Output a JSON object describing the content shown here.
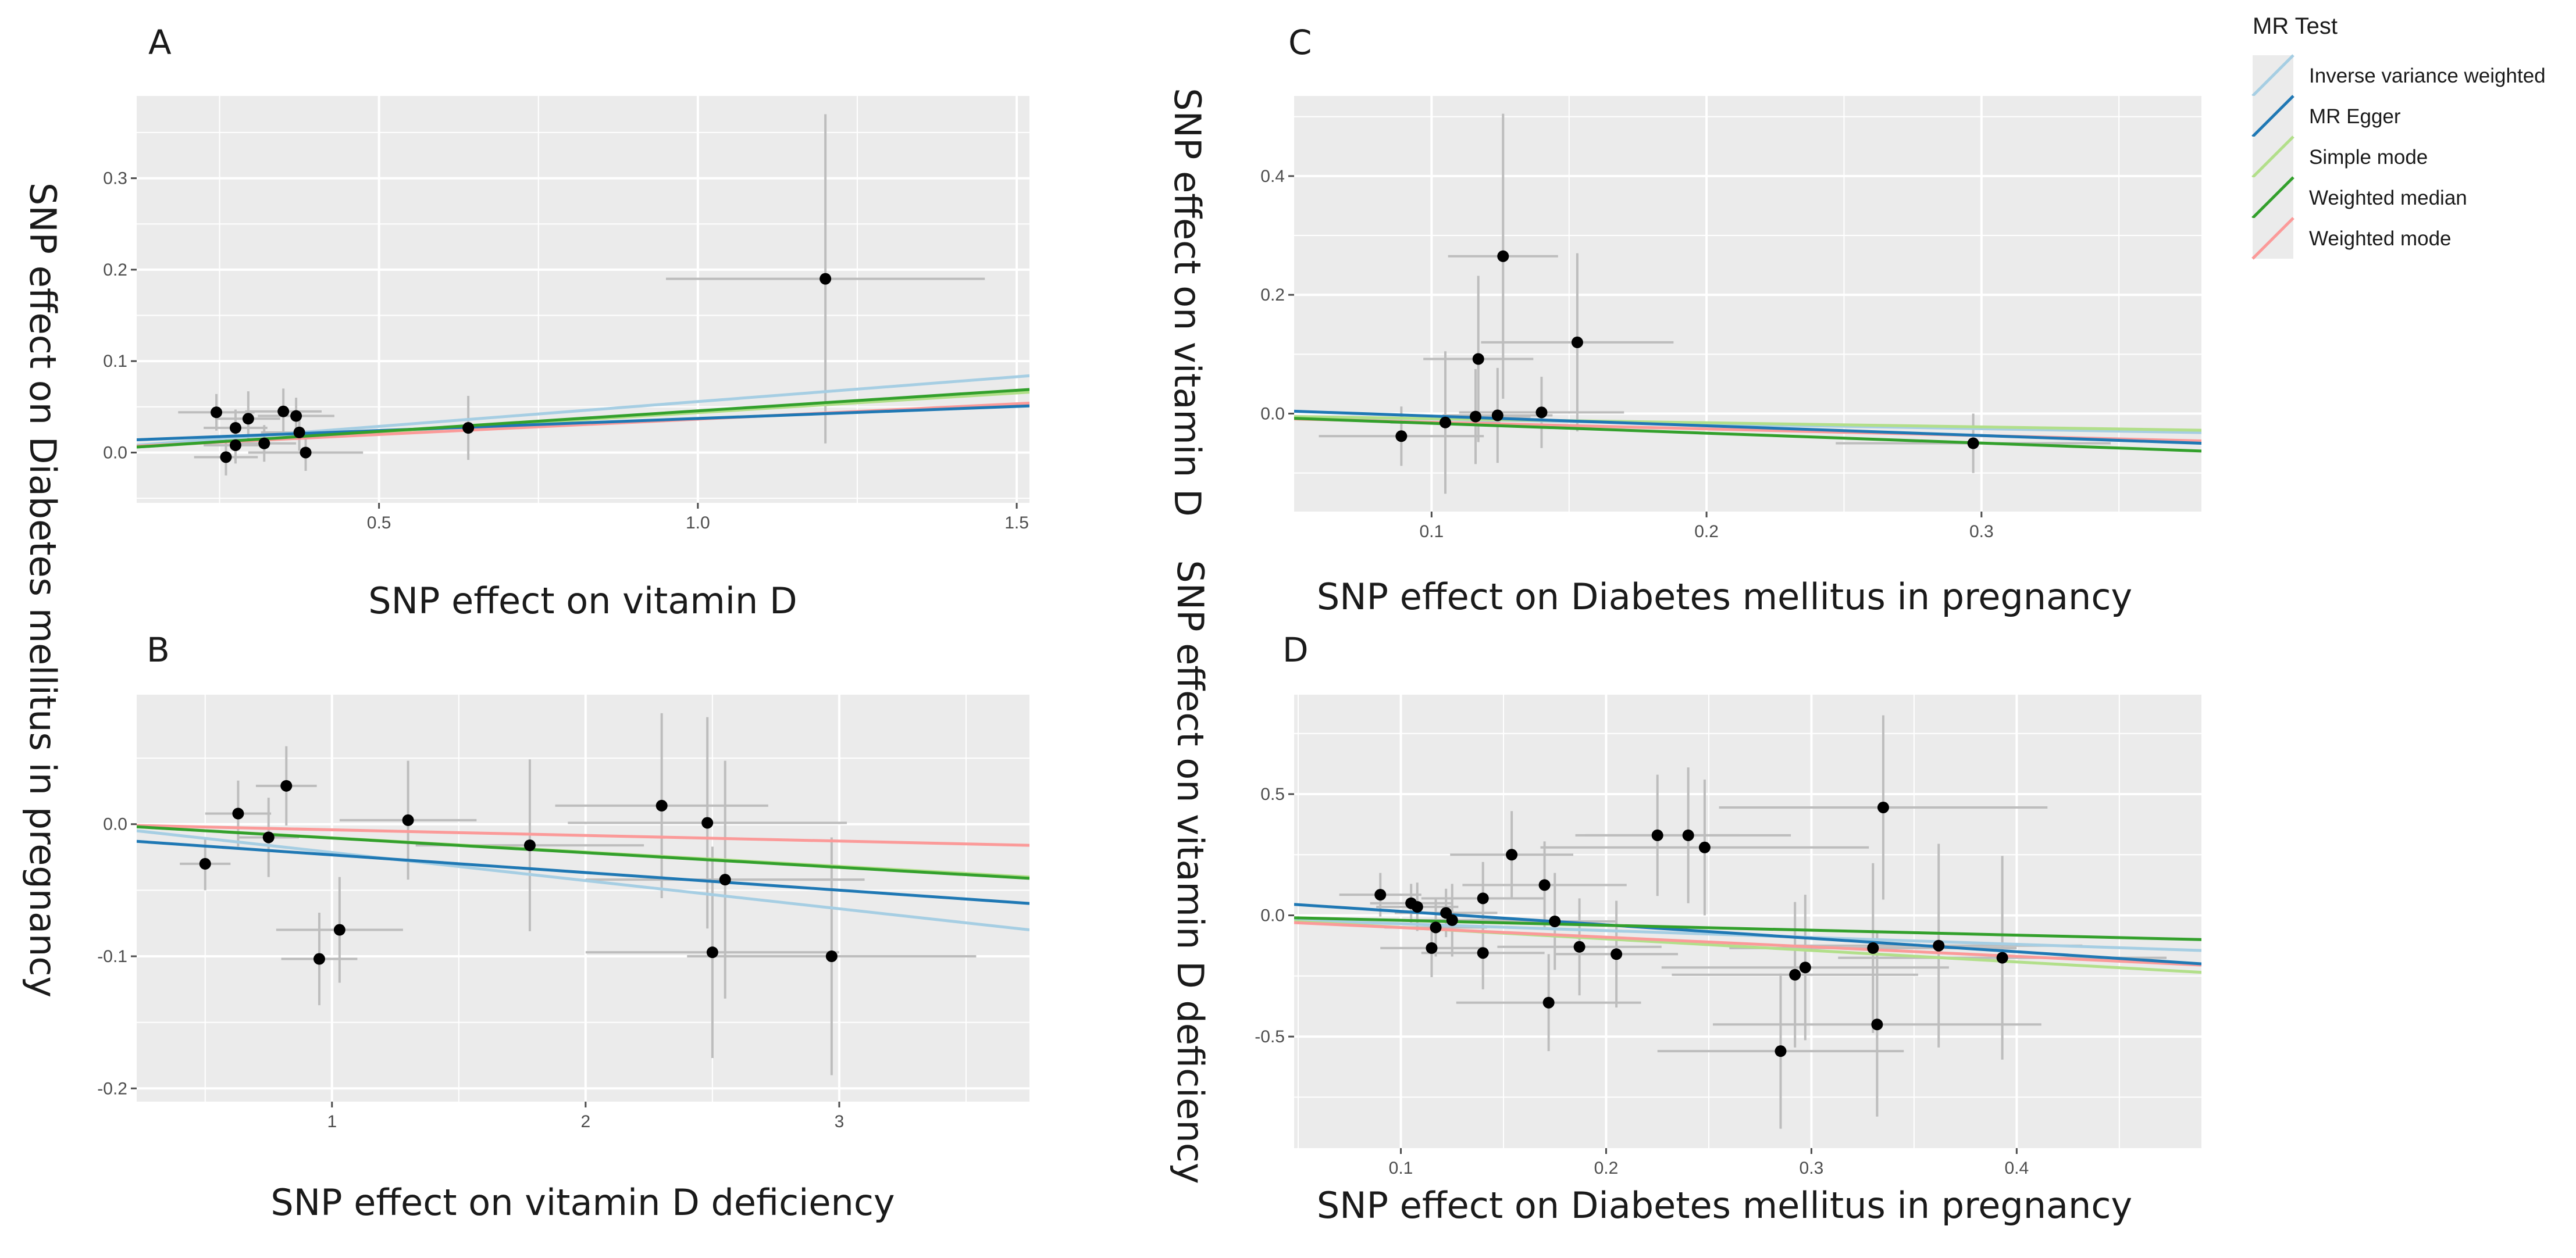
{
  "legend": {
    "title": "MR Test",
    "entries": [
      {
        "name": "Inverse variance weighted",
        "color": "#a6cee3"
      },
      {
        "name": "MR Egger",
        "color": "#1f78b4"
      },
      {
        "name": "Simple mode",
        "color": "#b2df8a"
      },
      {
        "name": "Weighted median",
        "color": "#33a02c"
      },
      {
        "name": "Weighted mode",
        "color": "#fb9a99"
      }
    ]
  },
  "colors": {
    "panel_bg": "#ebebeb",
    "grid": "#ffffff",
    "point": "#000000",
    "errorbar": "#bdbdbd"
  },
  "chart_data": [
    {
      "panel": "A",
      "type": "scatter",
      "xlabel": "SNP effect on vitamin D",
      "ylabel": "SNP effect on Diabetes mellitus in pregnancy",
      "xlim": [
        0.12,
        1.52
      ],
      "ylim": [
        -0.055,
        0.39
      ],
      "xticks": [
        0.5,
        1.0,
        1.5
      ],
      "xtick_labels": [
        "0.5",
        "1.0",
        "1.5"
      ],
      "yticks": [
        0.0,
        0.1,
        0.2,
        0.3
      ],
      "ytick_labels": [
        "0.0",
        "0.1",
        "0.2",
        "0.3"
      ],
      "points": [
        {
          "x": 0.245,
          "y": 0.044,
          "xerr": 0.06,
          "yerr": 0.02
        },
        {
          "x": 0.26,
          "y": -0.005,
          "xerr": 0.05,
          "yerr": 0.02
        },
        {
          "x": 0.275,
          "y": 0.027,
          "xerr": 0.05,
          "yerr": 0.02
        },
        {
          "x": 0.275,
          "y": 0.008,
          "xerr": 0.05,
          "yerr": 0.02
        },
        {
          "x": 0.295,
          "y": 0.037,
          "xerr": 0.05,
          "yerr": 0.03
        },
        {
          "x": 0.32,
          "y": 0.01,
          "xerr": 0.05,
          "yerr": 0.02
        },
        {
          "x": 0.35,
          "y": 0.045,
          "xerr": 0.06,
          "yerr": 0.025
        },
        {
          "x": 0.37,
          "y": 0.04,
          "xerr": 0.06,
          "yerr": 0.02
        },
        {
          "x": 0.375,
          "y": 0.022,
          "xerr": 0.06,
          "yerr": 0.02
        },
        {
          "x": 0.385,
          "y": 0.0,
          "xerr": 0.09,
          "yerr": 0.02
        },
        {
          "x": 0.64,
          "y": 0.027,
          "xerr": 0.05,
          "yerr": 0.035
        },
        {
          "x": 1.2,
          "y": 0.19,
          "xerr": 0.25,
          "yerr": 0.18
        }
      ],
      "lines": [
        {
          "method": "Inverse variance weighted",
          "x": [
            0.12,
            1.52
          ],
          "y": [
            0.008,
            0.084
          ]
        },
        {
          "method": "MR Egger",
          "x": [
            0.12,
            1.52
          ],
          "y": [
            0.014,
            0.051
          ]
        },
        {
          "method": "Simple mode",
          "x": [
            0.12,
            1.52
          ],
          "y": [
            0.006,
            0.066
          ]
        },
        {
          "method": "Weighted median",
          "x": [
            0.12,
            1.52
          ],
          "y": [
            0.006,
            0.069
          ]
        },
        {
          "method": "Weighted mode",
          "x": [
            0.12,
            1.52
          ],
          "y": [
            0.007,
            0.054
          ]
        }
      ]
    },
    {
      "panel": "B",
      "type": "scatter",
      "xlabel": "SNP effect on vitamin D deficiency",
      "ylabel": "",
      "xlim": [
        0.23,
        3.75
      ],
      "ylim": [
        -0.21,
        0.098
      ],
      "xticks": [
        1,
        2,
        3
      ],
      "xtick_labels": [
        "1",
        "2",
        "3"
      ],
      "yticks": [
        0.0,
        -0.1,
        -0.2
      ],
      "ytick_labels": [
        "0.0",
        "-0.1",
        "-0.2"
      ],
      "points": [
        {
          "x": 0.5,
          "y": -0.03,
          "xerr": 0.1,
          "yerr": 0.02
        },
        {
          "x": 0.63,
          "y": 0.008,
          "xerr": 0.13,
          "yerr": 0.025
        },
        {
          "x": 0.75,
          "y": -0.01,
          "xerr": 0.12,
          "yerr": 0.03
        },
        {
          "x": 0.82,
          "y": 0.029,
          "xerr": 0.12,
          "yerr": 0.03
        },
        {
          "x": 0.95,
          "y": -0.102,
          "xerr": 0.15,
          "yerr": 0.035
        },
        {
          "x": 1.03,
          "y": -0.08,
          "xerr": 0.25,
          "yerr": 0.04
        },
        {
          "x": 1.3,
          "y": 0.003,
          "xerr": 0.27,
          "yerr": 0.045
        },
        {
          "x": 1.78,
          "y": -0.016,
          "xerr": 0.45,
          "yerr": 0.065
        },
        {
          "x": 2.3,
          "y": 0.014,
          "xerr": 0.42,
          "yerr": 0.07
        },
        {
          "x": 2.48,
          "y": 0.001,
          "xerr": 0.55,
          "yerr": 0.08
        },
        {
          "x": 2.5,
          "y": -0.097,
          "xerr": 0.5,
          "yerr": 0.08
        },
        {
          "x": 2.55,
          "y": -0.042,
          "xerr": 0.55,
          "yerr": 0.09
        },
        {
          "x": 2.97,
          "y": -0.1,
          "xerr": 0.57,
          "yerr": 0.09
        }
      ],
      "lines": [
        {
          "method": "Inverse variance weighted",
          "x": [
            0.23,
            3.75
          ],
          "y": [
            -0.005,
            -0.08
          ]
        },
        {
          "method": "MR Egger",
          "x": [
            0.23,
            3.75
          ],
          "y": [
            -0.013,
            -0.06
          ]
        },
        {
          "method": "Simple mode",
          "x": [
            0.23,
            3.75
          ],
          "y": [
            -0.002,
            -0.04
          ]
        },
        {
          "method": "Weighted median",
          "x": [
            0.23,
            3.75
          ],
          "y": [
            -0.002,
            -0.041
          ]
        },
        {
          "method": "Weighted mode",
          "x": [
            0.23,
            3.75
          ],
          "y": [
            -0.001,
            -0.016
          ]
        }
      ]
    },
    {
      "panel": "C",
      "type": "scatter",
      "xlabel": "SNP effect on Diabetes mellitus in pregnancy",
      "ylabel": "SNP effect on vitamin D",
      "xlim": [
        0.05,
        0.38
      ],
      "ylim": [
        -0.165,
        0.535
      ],
      "xticks": [
        0.1,
        0.2,
        0.3
      ],
      "xtick_labels": [
        "0.1",
        "0.2",
        "0.3"
      ],
      "yticks": [
        0.0,
        0.2,
        0.4
      ],
      "ytick_labels": [
        "0.0",
        "0.2",
        "0.4"
      ],
      "points": [
        {
          "x": 0.089,
          "y": -0.038,
          "xerr": 0.03,
          "yerr": 0.05
        },
        {
          "x": 0.105,
          "y": -0.015,
          "xerr": 0.02,
          "yerr": 0.12
        },
        {
          "x": 0.116,
          "y": -0.005,
          "xerr": 0.02,
          "yerr": 0.08
        },
        {
          "x": 0.117,
          "y": 0.092,
          "xerr": 0.02,
          "yerr": 0.14
        },
        {
          "x": 0.124,
          "y": -0.003,
          "xerr": 0.02,
          "yerr": 0.08
        },
        {
          "x": 0.126,
          "y": 0.265,
          "xerr": 0.02,
          "yerr": 0.24
        },
        {
          "x": 0.14,
          "y": 0.002,
          "xerr": 0.03,
          "yerr": 0.06
        },
        {
          "x": 0.153,
          "y": 0.12,
          "xerr": 0.035,
          "yerr": 0.15
        },
        {
          "x": 0.297,
          "y": -0.05,
          "xerr": 0.05,
          "yerr": 0.05
        }
      ],
      "lines": [
        {
          "method": "Inverse variance weighted",
          "x": [
            0.05,
            0.38
          ],
          "y": [
            -0.005,
            -0.032
          ]
        },
        {
          "method": "MR Egger",
          "x": [
            0.05,
            0.38
          ],
          "y": [
            0.004,
            -0.05
          ]
        },
        {
          "method": "Simple mode",
          "x": [
            0.05,
            0.38
          ],
          "y": [
            -0.005,
            -0.028
          ]
        },
        {
          "method": "Weighted median",
          "x": [
            0.05,
            0.38
          ],
          "y": [
            -0.008,
            -0.063
          ]
        },
        {
          "method": "Weighted mode",
          "x": [
            0.05,
            0.38
          ],
          "y": [
            -0.009,
            -0.046
          ]
        }
      ]
    },
    {
      "panel": "D",
      "type": "scatter",
      "xlabel": "SNP effect on Diabetes mellitus in pregnancy",
      "ylabel": "SNP effect on vitamin D deficiency",
      "xlim": [
        0.048,
        0.49
      ],
      "ylim": [
        -0.96,
        0.91
      ],
      "xticks": [
        0.1,
        0.2,
        0.3,
        0.4
      ],
      "xtick_labels": [
        "0.1",
        "0.2",
        "0.3",
        "0.4"
      ],
      "yticks": [
        0.5,
        0.0,
        -0.5
      ],
      "ytick_labels": [
        "0.5",
        "0.0",
        "-0.5"
      ],
      "points": [
        {
          "x": 0.09,
          "y": 0.085,
          "xerr": 0.02,
          "yerr": 0.09
        },
        {
          "x": 0.105,
          "y": 0.05,
          "xerr": 0.02,
          "yerr": 0.08
        },
        {
          "x": 0.108,
          "y": 0.035,
          "xerr": 0.02,
          "yerr": 0.1
        },
        {
          "x": 0.115,
          "y": -0.135,
          "xerr": 0.025,
          "yerr": 0.12
        },
        {
          "x": 0.117,
          "y": -0.05,
          "xerr": 0.025,
          "yerr": 0.12
        },
        {
          "x": 0.122,
          "y": 0.01,
          "xerr": 0.025,
          "yerr": 0.1
        },
        {
          "x": 0.125,
          "y": -0.02,
          "xerr": 0.03,
          "yerr": 0.15
        },
        {
          "x": 0.14,
          "y": 0.07,
          "xerr": 0.03,
          "yerr": 0.15
        },
        {
          "x": 0.14,
          "y": -0.155,
          "xerr": 0.03,
          "yerr": 0.15
        },
        {
          "x": 0.154,
          "y": 0.25,
          "xerr": 0.03,
          "yerr": 0.18
        },
        {
          "x": 0.17,
          "y": 0.125,
          "xerr": 0.04,
          "yerr": 0.18
        },
        {
          "x": 0.172,
          "y": -0.36,
          "xerr": 0.045,
          "yerr": 0.2
        },
        {
          "x": 0.175,
          "y": -0.025,
          "xerr": 0.03,
          "yerr": 0.2
        },
        {
          "x": 0.187,
          "y": -0.13,
          "xerr": 0.04,
          "yerr": 0.2
        },
        {
          "x": 0.205,
          "y": -0.16,
          "xerr": 0.03,
          "yerr": 0.22
        },
        {
          "x": 0.225,
          "y": 0.33,
          "xerr": 0.04,
          "yerr": 0.25
        },
        {
          "x": 0.24,
          "y": 0.33,
          "xerr": 0.05,
          "yerr": 0.28
        },
        {
          "x": 0.248,
          "y": 0.28,
          "xerr": 0.08,
          "yerr": 0.28
        },
        {
          "x": 0.285,
          "y": -0.56,
          "xerr": 0.06,
          "yerr": 0.32
        },
        {
          "x": 0.292,
          "y": -0.245,
          "xerr": 0.06,
          "yerr": 0.3
        },
        {
          "x": 0.297,
          "y": -0.215,
          "xerr": 0.07,
          "yerr": 0.3
        },
        {
          "x": 0.33,
          "y": -0.135,
          "xerr": 0.07,
          "yerr": 0.35
        },
        {
          "x": 0.332,
          "y": -0.45,
          "xerr": 0.08,
          "yerr": 0.38
        },
        {
          "x": 0.335,
          "y": 0.445,
          "xerr": 0.08,
          "yerr": 0.38
        },
        {
          "x": 0.362,
          "y": -0.125,
          "xerr": 0.07,
          "yerr": 0.42
        },
        {
          "x": 0.393,
          "y": -0.175,
          "xerr": 0.08,
          "yerr": 0.42
        }
      ],
      "lines": [
        {
          "method": "Inverse variance weighted",
          "x": [
            0.048,
            0.49
          ],
          "y": [
            -0.02,
            -0.145
          ]
        },
        {
          "method": "MR Egger",
          "x": [
            0.048,
            0.49
          ],
          "y": [
            0.045,
            -0.2
          ]
        },
        {
          "method": "Simple mode",
          "x": [
            0.048,
            0.49
          ],
          "y": [
            -0.025,
            -0.235
          ]
        },
        {
          "method": "Weighted median",
          "x": [
            0.048,
            0.49
          ],
          "y": [
            -0.01,
            -0.1
          ]
        },
        {
          "method": "Weighted mode",
          "x": [
            0.048,
            0.49
          ],
          "y": [
            -0.03,
            -0.205
          ]
        }
      ]
    }
  ]
}
